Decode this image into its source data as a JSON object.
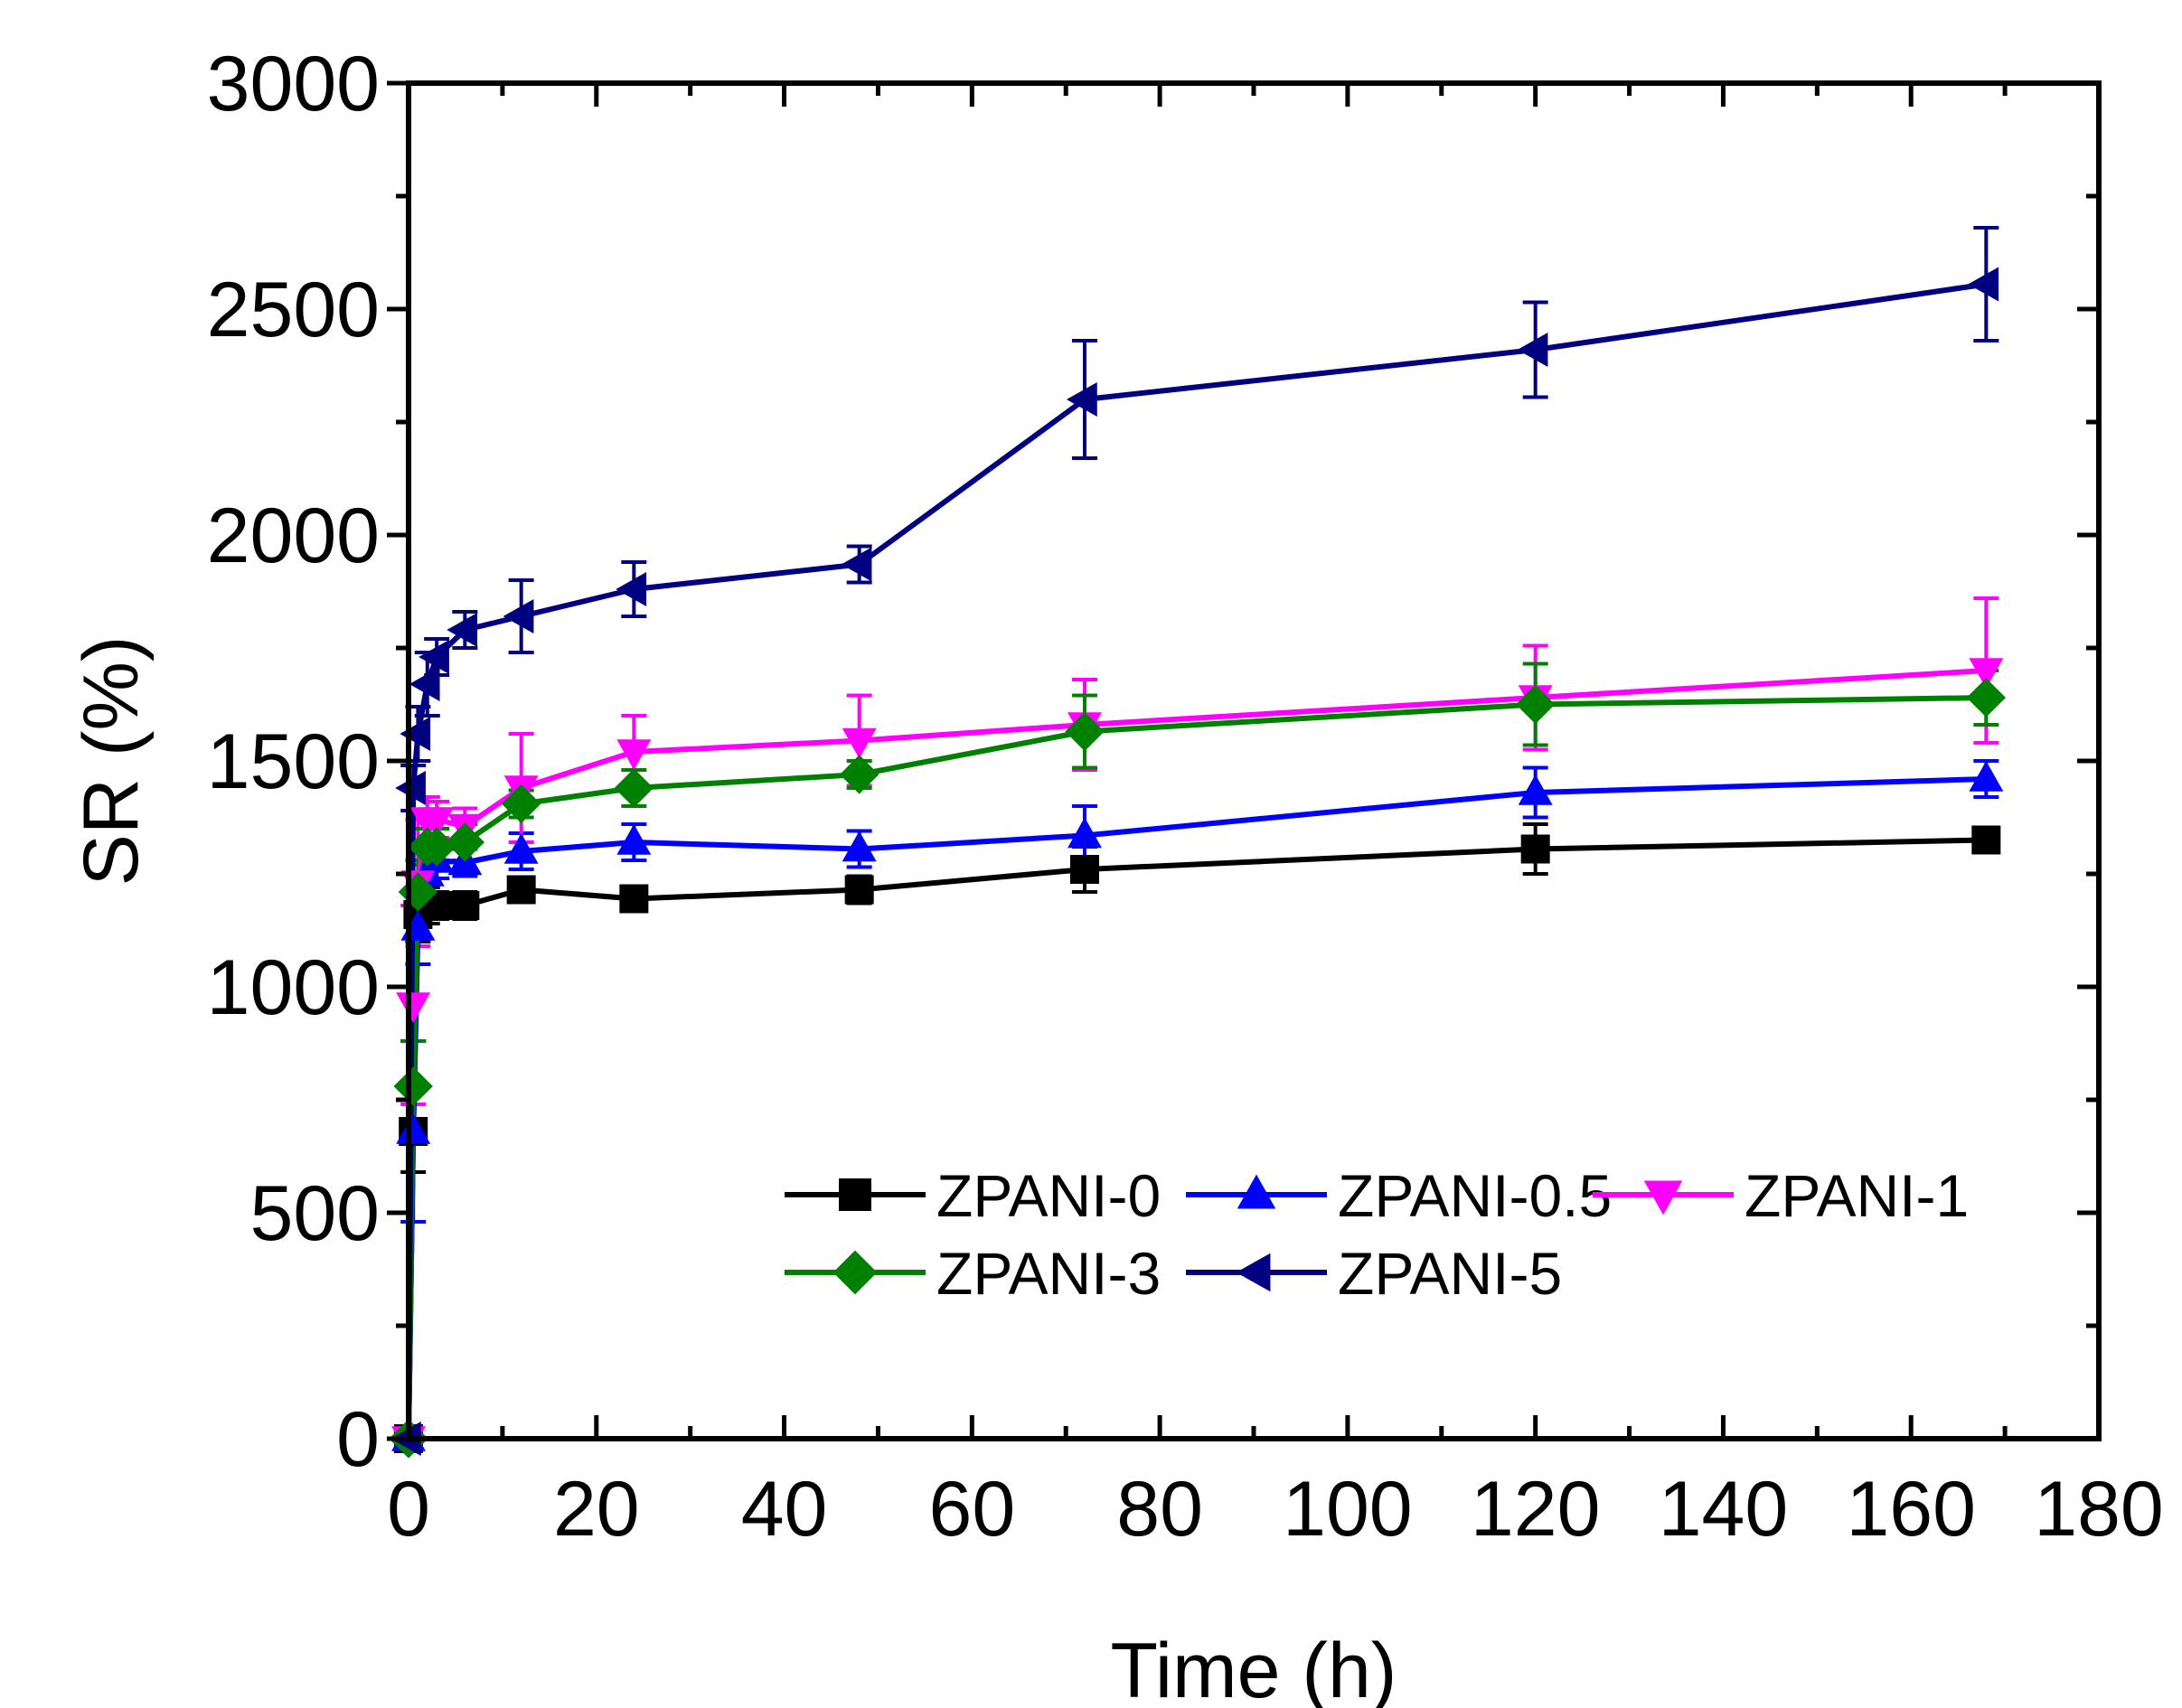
{
  "chart_data": {
    "type": "line",
    "xlabel": "Time (h)",
    "ylabel": "SR (%)",
    "xlim": [
      0,
      180
    ],
    "ylim": [
      0,
      3000
    ],
    "xticks": [
      "0",
      "20",
      "40",
      "60",
      "80",
      "100",
      "120",
      "140",
      "160",
      "180"
    ],
    "yticks": [
      "0",
      "500",
      "1000",
      "1500",
      "2000",
      "2500",
      "3000"
    ],
    "x": [
      0,
      0.5,
      1,
      2,
      3,
      6,
      12,
      24,
      48,
      72,
      120,
      168
    ],
    "grid": false,
    "legend_position": "bottom-right",
    "series": [
      {
        "name": "ZPANI-0",
        "color": "#000000",
        "marker": "square",
        "values": [
          0,
          680,
          1160,
          1180,
          1180,
          1180,
          1215,
          1195,
          1215,
          1260,
          1305,
          1325
        ],
        "errors": [
          0,
          90,
          60,
          40,
          30,
          30,
          25,
          25,
          30,
          50,
          55,
          20
        ]
      },
      {
        "name": "ZPANI-0.5",
        "color": "#0000ff",
        "marker": "triangle-up",
        "values": [
          0,
          680,
          1130,
          1250,
          1280,
          1275,
          1300,
          1320,
          1305,
          1335,
          1430,
          1460
        ],
        "errors": [
          0,
          200,
          80,
          50,
          40,
          30,
          40,
          40,
          40,
          65,
          55,
          40
        ]
      },
      {
        "name": "ZPANI-1",
        "color": "#ff00ff",
        "marker": "triangle-down",
        "values": [
          0,
          960,
          1230,
          1370,
          1370,
          1355,
          1440,
          1520,
          1545,
          1580,
          1640,
          1700
        ],
        "errors": [
          0,
          220,
          140,
          50,
          40,
          40,
          120,
          80,
          100,
          100,
          115,
          160
        ]
      },
      {
        "name": "ZPANI-3",
        "color": "#008000",
        "marker": "diamond",
        "values": [
          0,
          780,
          1210,
          1310,
          1310,
          1320,
          1405,
          1440,
          1470,
          1565,
          1625,
          1640
        ],
        "errors": [
          0,
          100,
          70,
          40,
          40,
          40,
          30,
          40,
          30,
          80,
          90,
          60
        ]
      },
      {
        "name": "ZPANI-5",
        "color": "#000080",
        "marker": "triangle-left",
        "values": [
          0,
          1440,
          1560,
          1670,
          1730,
          1790,
          1820,
          1880,
          1935,
          2300,
          2410,
          2555
        ],
        "errors": [
          0,
          50,
          60,
          70,
          40,
          40,
          80,
          60,
          40,
          130,
          105,
          125
        ]
      }
    ],
    "colors": {
      "axis": "#000000",
      "background": "#ffffff"
    }
  }
}
